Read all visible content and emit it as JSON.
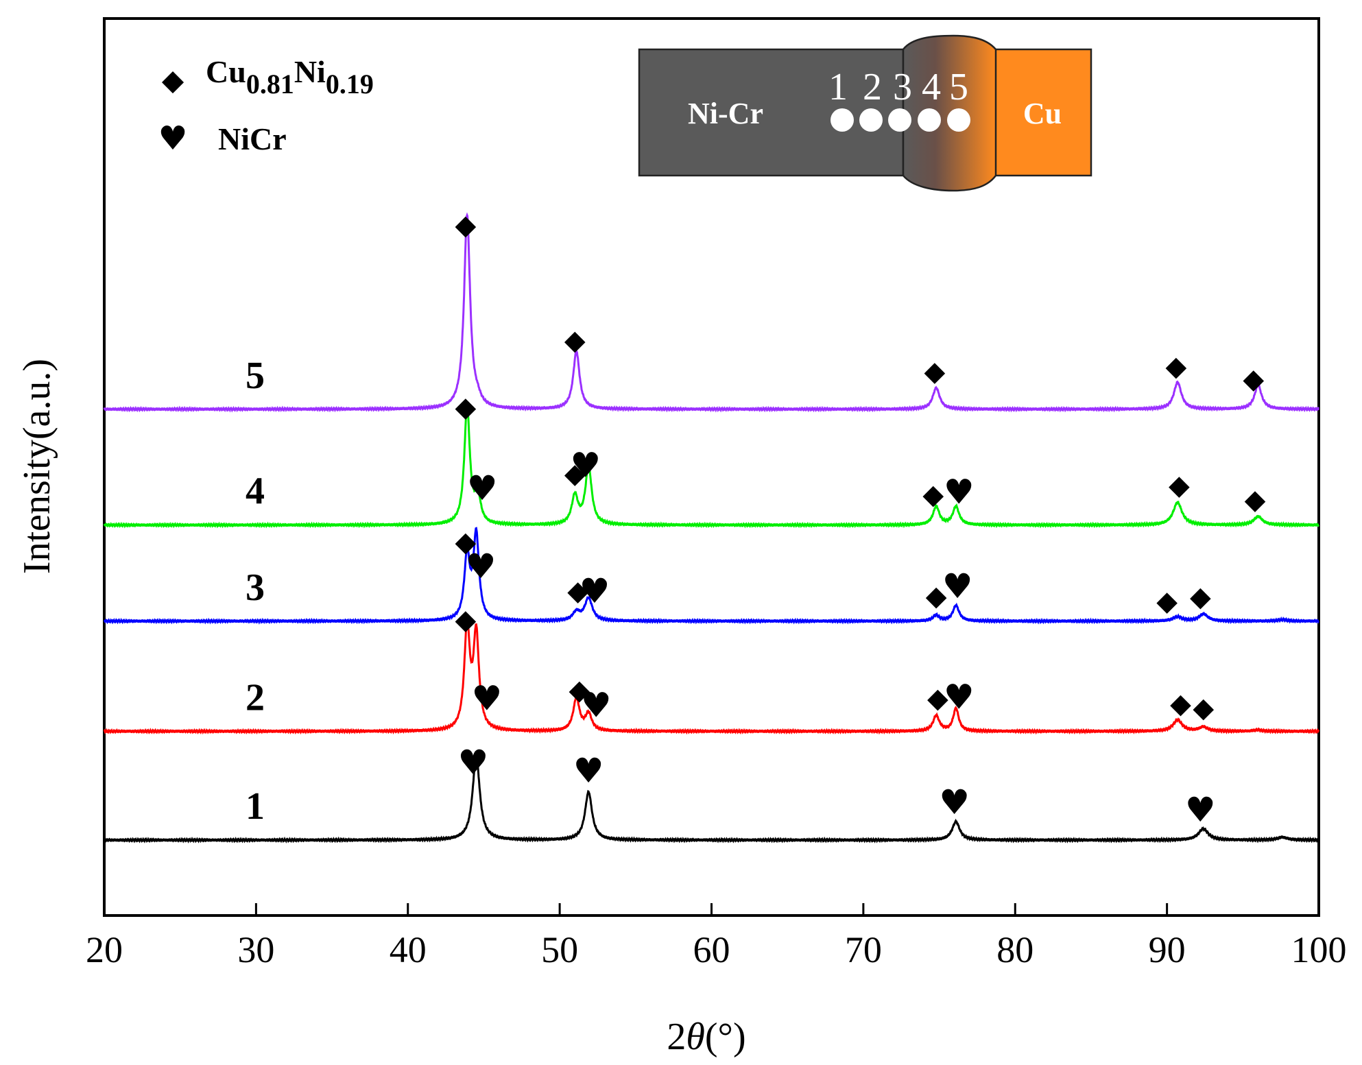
{
  "chart_data": {
    "type": "line",
    "xlabel_prefix": "2",
    "xlabel_theta": "θ",
    "xlabel_suffix": "(°)",
    "ylabel": "Intensity(a.u.)",
    "xlim": [
      20,
      100
    ],
    "xticks": [
      20,
      30,
      40,
      50,
      60,
      70,
      80,
      90,
      100
    ],
    "xtick_labels": [
      "20",
      "30",
      "40",
      "50",
      "60",
      "70",
      "80",
      "90",
      "100"
    ],
    "legend": {
      "placement": "top-left",
      "entries": [
        {
          "symbol": "◆",
          "label_main1": "Cu",
          "label_sub1": "0.81",
          "label_main2": "Ni",
          "label_sub2": "0.19",
          "phase": "Cu0.81Ni0.19"
        },
        {
          "symbol": "♥",
          "label": "NiCr",
          "phase": "NiCr"
        }
      ]
    },
    "inset": {
      "left_label": "Ni-Cr",
      "right_label": "Cu",
      "position_numbers": [
        "1",
        "2",
        "3",
        "4",
        "5"
      ],
      "left_color": "#5a5a5a",
      "right_color": "#ff8a1e"
    },
    "series": [
      {
        "name": "1",
        "color": "#000000",
        "offset": 0,
        "peaks": [
          {
            "x": 44.5,
            "h": 6.0,
            "w": 0.28
          },
          {
            "x": 51.9,
            "h": 3.4,
            "w": 0.28
          },
          {
            "x": 76.1,
            "h": 1.3,
            "w": 0.3
          },
          {
            "x": 92.4,
            "h": 0.8,
            "w": 0.38
          },
          {
            "x": 97.6,
            "h": 0.2,
            "w": 0.4
          }
        ],
        "markers": [
          {
            "x": 44.3,
            "symbol": "♥"
          },
          {
            "x": 51.9,
            "symbol": "♥"
          },
          {
            "x": 76.0,
            "symbol": "♥"
          },
          {
            "x": 92.2,
            "symbol": "♥"
          }
        ]
      },
      {
        "name": "2",
        "color": "#ff0000",
        "offset": 7.7,
        "peaks": [
          {
            "x": 43.9,
            "h": 7.2,
            "w": 0.22
          },
          {
            "x": 44.5,
            "h": 6.7,
            "w": 0.22
          },
          {
            "x": 51.1,
            "h": 2.3,
            "w": 0.25
          },
          {
            "x": 51.9,
            "h": 1.2,
            "w": 0.25
          },
          {
            "x": 74.8,
            "h": 1.1,
            "w": 0.25
          },
          {
            "x": 76.1,
            "h": 1.6,
            "w": 0.22
          },
          {
            "x": 90.7,
            "h": 0.8,
            "w": 0.35
          },
          {
            "x": 92.4,
            "h": 0.3,
            "w": 0.35
          },
          {
            "x": 96.0,
            "h": 0.1,
            "w": 0.3
          }
        ],
        "markers": [
          {
            "x": 43.8,
            "symbol": "◆"
          },
          {
            "x": 45.2,
            "symbol": "♥"
          },
          {
            "x": 51.3,
            "symbol": "◆"
          },
          {
            "x": 52.4,
            "symbol": "♥"
          },
          {
            "x": 74.9,
            "symbol": "◆"
          },
          {
            "x": 76.3,
            "symbol": "♥"
          },
          {
            "x": 90.9,
            "symbol": "◆"
          },
          {
            "x": 92.4,
            "symbol": "◆"
          }
        ]
      },
      {
        "name": "3",
        "color": "#0000ff",
        "offset": 15.5,
        "peaks": [
          {
            "x": 43.9,
            "h": 4.5,
            "w": 0.22
          },
          {
            "x": 44.5,
            "h": 6.0,
            "w": 0.22
          },
          {
            "x": 51.1,
            "h": 0.6,
            "w": 0.3
          },
          {
            "x": 51.9,
            "h": 1.6,
            "w": 0.3
          },
          {
            "x": 74.8,
            "h": 0.4,
            "w": 0.25
          },
          {
            "x": 76.1,
            "h": 1.1,
            "w": 0.25
          },
          {
            "x": 90.7,
            "h": 0.3,
            "w": 0.35
          },
          {
            "x": 92.4,
            "h": 0.5,
            "w": 0.35
          },
          {
            "x": 97.6,
            "h": 0.1,
            "w": 0.35
          }
        ],
        "markers": [
          {
            "x": 43.8,
            "symbol": "◆"
          },
          {
            "x": 44.8,
            "symbol": "♥"
          },
          {
            "x": 51.2,
            "symbol": "◆"
          },
          {
            "x": 52.3,
            "symbol": "♥"
          },
          {
            "x": 74.8,
            "symbol": "◆"
          },
          {
            "x": 76.2,
            "symbol": "♥"
          },
          {
            "x": 90.0,
            "symbol": "◆"
          },
          {
            "x": 92.2,
            "symbol": "◆"
          }
        ]
      },
      {
        "name": "4",
        "color": "#00ee00",
        "offset": 22.3,
        "peaks": [
          {
            "x": 43.9,
            "h": 8.3,
            "w": 0.22
          },
          {
            "x": 44.6,
            "h": 2.0,
            "w": 0.22
          },
          {
            "x": 51.0,
            "h": 2.0,
            "w": 0.25
          },
          {
            "x": 51.9,
            "h": 4.1,
            "w": 0.25
          },
          {
            "x": 74.8,
            "h": 1.3,
            "w": 0.25
          },
          {
            "x": 76.1,
            "h": 1.3,
            "w": 0.25
          },
          {
            "x": 90.7,
            "h": 1.6,
            "w": 0.35
          },
          {
            "x": 96.0,
            "h": 0.6,
            "w": 0.35
          }
        ],
        "markers": [
          {
            "x": 43.8,
            "symbol": "◆"
          },
          {
            "x": 44.9,
            "symbol": "♥"
          },
          {
            "x": 51.0,
            "symbol": "◆"
          },
          {
            "x": 51.7,
            "symbol": "♥"
          },
          {
            "x": 74.6,
            "symbol": "◆"
          },
          {
            "x": 76.3,
            "symbol": "♥"
          },
          {
            "x": 90.8,
            "symbol": "◆"
          },
          {
            "x": 95.8,
            "symbol": "◆"
          }
        ]
      },
      {
        "name": "5",
        "color": "#9b30ff",
        "offset": 30.5,
        "peaks": [
          {
            "x": 43.9,
            "h": 13.7,
            "w": 0.24
          },
          {
            "x": 44.6,
            "h": 0.4,
            "w": 0.25
          },
          {
            "x": 51.1,
            "h": 4.1,
            "w": 0.25
          },
          {
            "x": 74.8,
            "h": 1.5,
            "w": 0.28
          },
          {
            "x": 90.7,
            "h": 1.9,
            "w": 0.3
          },
          {
            "x": 96.0,
            "h": 1.7,
            "w": 0.28
          }
        ],
        "markers": [
          {
            "x": 43.8,
            "symbol": "◆"
          },
          {
            "x": 51.0,
            "symbol": "◆"
          },
          {
            "x": 74.7,
            "symbol": "◆"
          },
          {
            "x": 90.6,
            "symbol": "◆"
          },
          {
            "x": 95.7,
            "symbol": "◆"
          }
        ]
      }
    ]
  }
}
